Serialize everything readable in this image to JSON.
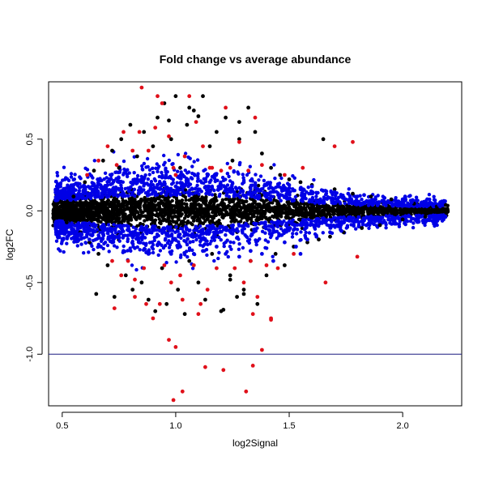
{
  "chart_data": {
    "type": "scatter",
    "title": "Fold change vs average abundance",
    "xlabel": "log2Signal",
    "ylabel": "log2FC",
    "xlim": [
      0.44,
      2.26
    ],
    "ylim": [
      -1.36,
      0.9
    ],
    "xticks": [
      0.5,
      1.0,
      1.5,
      2.0
    ],
    "xtick_labels": [
      "0.5",
      "1.0",
      "1.5",
      "2.0"
    ],
    "yticks": [
      0.5,
      0.0,
      -0.5,
      -1.0
    ],
    "ytick_labels": [
      "0.5",
      "0.0",
      "-0.5",
      "-1.0"
    ],
    "grid": false,
    "reference_lines": [
      {
        "orientation": "horizontal",
        "y": -1.0,
        "color": "#1a1a80"
      }
    ],
    "series": [
      {
        "color": "#000000",
        "points": [
          [
            0.47,
            0.02
          ],
          [
            0.48,
            -0.03
          ],
          [
            0.5,
            0.05
          ],
          [
            0.52,
            -0.08
          ],
          [
            0.55,
            0.1
          ],
          [
            0.58,
            -0.15
          ],
          [
            0.6,
            0.2
          ],
          [
            0.62,
            -0.22
          ],
          [
            0.64,
            0.28
          ],
          [
            0.65,
            -0.58
          ],
          [
            0.66,
            -0.3
          ],
          [
            0.68,
            0.35
          ],
          [
            0.7,
            -0.38
          ],
          [
            0.72,
            0.42
          ],
          [
            0.73,
            -0.6
          ],
          [
            0.75,
            0.3
          ],
          [
            0.76,
            0.5
          ],
          [
            0.78,
            -0.45
          ],
          [
            0.8,
            0.6
          ],
          [
            0.81,
            -0.55
          ],
          [
            0.83,
            0.38
          ],
          [
            0.85,
            -0.5
          ],
          [
            0.86,
            0.55
          ],
          [
            0.88,
            -0.62
          ],
          [
            0.9,
            0.45
          ],
          [
            0.91,
            -0.7
          ],
          [
            0.92,
            0.65
          ],
          [
            0.94,
            -0.4
          ],
          [
            0.95,
            0.75
          ],
          [
            0.96,
            -0.65
          ],
          [
            0.98,
            0.5
          ],
          [
            1.0,
            0.8
          ],
          [
            1.01,
            -0.55
          ],
          [
            1.02,
            0.3
          ],
          [
            1.04,
            -0.72
          ],
          [
            1.05,
            0.6
          ],
          [
            1.06,
            -0.35
          ],
          [
            1.08,
            0.7
          ],
          [
            1.1,
            -0.5
          ],
          [
            1.12,
            0.8
          ],
          [
            1.13,
            -0.62
          ],
          [
            1.15,
            0.45
          ],
          [
            1.16,
            -0.3
          ],
          [
            1.18,
            0.55
          ],
          [
            1.2,
            -0.7
          ],
          [
            1.22,
            0.65
          ],
          [
            1.24,
            -0.45
          ],
          [
            1.25,
            0.35
          ],
          [
            1.27,
            -0.6
          ],
          [
            1.28,
            0.5
          ],
          [
            1.3,
            -0.55
          ],
          [
            1.32,
            0.72
          ],
          [
            1.33,
            -0.35
          ],
          [
            1.35,
            0.55
          ],
          [
            1.36,
            -0.65
          ],
          [
            1.38,
            0.4
          ],
          [
            1.4,
            -0.45
          ],
          [
            1.42,
            0.3
          ],
          [
            1.44,
            -0.3
          ],
          [
            1.46,
            0.25
          ],
          [
            1.48,
            -0.38
          ],
          [
            1.5,
            0.22
          ],
          [
            1.52,
            -0.25
          ],
          [
            1.55,
            0.2
          ],
          [
            1.58,
            -0.22
          ],
          [
            1.6,
            0.18
          ],
          [
            1.63,
            -0.2
          ],
          [
            1.65,
            0.5
          ],
          [
            1.68,
            -0.18
          ],
          [
            1.7,
            0.15
          ],
          [
            1.74,
            -0.15
          ],
          [
            1.78,
            0.12
          ],
          [
            1.82,
            -0.12
          ],
          [
            1.86,
            0.1
          ],
          [
            1.9,
            -0.1
          ],
          [
            1.95,
            0.08
          ],
          [
            2.0,
            -0.06
          ],
          [
            2.05,
            0.05
          ],
          [
            2.1,
            -0.04
          ],
          [
            2.15,
            0.03
          ],
          [
            2.19,
            0.04
          ],
          [
            1.24,
            -0.48
          ],
          [
            1.21,
            -0.69
          ],
          [
            1.1,
            0.66
          ],
          [
            0.97,
            0.63
          ],
          [
            1.06,
            0.72
          ],
          [
            1.28,
            0.62
          ],
          [
            1.3,
            -0.58
          ]
        ]
      },
      {
        "color": "#0000e6",
        "points": [
          [
            0.5,
            0.1
          ],
          [
            0.52,
            -0.12
          ],
          [
            0.55,
            0.14
          ],
          [
            0.58,
            -0.16
          ],
          [
            0.6,
            0.12
          ],
          [
            0.62,
            -0.2
          ],
          [
            0.65,
            0.15
          ],
          [
            0.67,
            -0.25
          ],
          [
            0.7,
            0.18
          ],
          [
            0.72,
            -0.22
          ],
          [
            0.75,
            0.2
          ],
          [
            0.77,
            -0.28
          ],
          [
            0.8,
            0.16
          ],
          [
            0.82,
            -0.26
          ],
          [
            0.85,
            0.2
          ],
          [
            0.88,
            -0.3
          ],
          [
            0.9,
            0.18
          ],
          [
            0.92,
            -0.24
          ],
          [
            0.95,
            0.2
          ],
          [
            0.98,
            -0.3
          ],
          [
            1.0,
            0.17
          ],
          [
            1.02,
            -0.25
          ],
          [
            1.05,
            0.2
          ],
          [
            1.08,
            -0.3
          ],
          [
            1.1,
            0.15
          ],
          [
            1.12,
            -0.28
          ],
          [
            1.15,
            0.2
          ],
          [
            1.18,
            -0.25
          ],
          [
            1.2,
            0.18
          ],
          [
            1.22,
            -0.3
          ],
          [
            1.25,
            0.15
          ],
          [
            1.28,
            -0.32
          ],
          [
            1.3,
            0.2
          ],
          [
            1.33,
            -0.28
          ],
          [
            1.35,
            0.16
          ],
          [
            1.38,
            -0.3
          ],
          [
            1.4,
            0.18
          ],
          [
            1.43,
            -0.35
          ],
          [
            1.45,
            0.17
          ],
          [
            1.48,
            -0.22
          ],
          [
            1.5,
            0.18
          ],
          [
            1.53,
            -0.25
          ],
          [
            1.55,
            0.15
          ],
          [
            1.58,
            -0.2
          ],
          [
            1.6,
            0.17
          ],
          [
            1.62,
            -0.18
          ],
          [
            1.65,
            0.14
          ],
          [
            1.68,
            -0.15
          ],
          [
            1.7,
            0.13
          ],
          [
            1.73,
            -0.14
          ],
          [
            1.76,
            0.12
          ],
          [
            1.8,
            0.1
          ],
          [
            1.84,
            -0.1
          ],
          [
            1.88,
            0.08
          ],
          [
            1.92,
            0.09
          ],
          [
            1.96,
            -0.05
          ],
          [
            2.0,
            0.08
          ],
          [
            2.04,
            0.06
          ],
          [
            2.08,
            0.05
          ],
          [
            2.12,
            0.05
          ],
          [
            2.16,
            0.04
          ],
          [
            1.83,
            0.11
          ],
          [
            1.91,
            0.07
          ],
          [
            1.55,
            -0.3
          ]
        ]
      },
      {
        "color": "#e0101a",
        "points": [
          [
            0.61,
            0.25
          ],
          [
            0.66,
            0.35
          ],
          [
            0.7,
            0.45
          ],
          [
            0.72,
            -0.35
          ],
          [
            0.74,
            0.32
          ],
          [
            0.76,
            -0.45
          ],
          [
            0.77,
            0.55
          ],
          [
            0.79,
            -0.35
          ],
          [
            0.81,
            0.42
          ],
          [
            0.82,
            -0.48
          ],
          [
            0.84,
            0.55
          ],
          [
            0.85,
            0.86
          ],
          [
            0.86,
            -0.4
          ],
          [
            0.87,
            -0.65
          ],
          [
            0.88,
            0.42
          ],
          [
            0.9,
            -0.75
          ],
          [
            0.91,
            0.58
          ],
          [
            0.92,
            0.8
          ],
          [
            0.93,
            -0.65
          ],
          [
            0.94,
            0.75
          ],
          [
            0.95,
            -0.38
          ],
          [
            0.97,
            0.52
          ],
          [
            0.98,
            -0.5
          ],
          [
            1.0,
            0.25
          ],
          [
            1.0,
            -0.95
          ],
          [
            1.02,
            -0.45
          ],
          [
            1.04,
            0.38
          ],
          [
            1.06,
            0.8
          ],
          [
            1.08,
            -0.38
          ],
          [
            1.09,
            0.62
          ],
          [
            1.1,
            -0.72
          ],
          [
            1.12,
            0.45
          ],
          [
            1.14,
            -0.55
          ],
          [
            1.16,
            0.3
          ],
          [
            1.18,
            -0.4
          ],
          [
            1.2,
            0.28
          ],
          [
            1.22,
            0.72
          ],
          [
            1.24,
            0.3
          ],
          [
            1.26,
            -0.4
          ],
          [
            1.28,
            0.48
          ],
          [
            1.3,
            -0.5
          ],
          [
            1.32,
            0.28
          ],
          [
            1.33,
            -0.35
          ],
          [
            1.35,
            0.65
          ],
          [
            1.36,
            -0.6
          ],
          [
            1.38,
            0.32
          ],
          [
            1.4,
            -0.38
          ],
          [
            1.42,
            -0.75
          ],
          [
            1.45,
            -0.4
          ],
          [
            1.48,
            0.25
          ],
          [
            1.52,
            -0.3
          ],
          [
            1.56,
            0.3
          ],
          [
            1.66,
            -0.5
          ],
          [
            1.7,
            0.45
          ],
          [
            1.78,
            0.48
          ],
          [
            1.8,
            -0.32
          ],
          [
            0.97,
            -0.9
          ],
          [
            0.73,
            -0.68
          ],
          [
            0.82,
            -0.6
          ],
          [
            1.11,
            -0.65
          ],
          [
            1.03,
            -0.62
          ],
          [
            1.34,
            -0.72
          ],
          [
            0.99,
            0.3
          ],
          [
            1.15,
            0.3
          ]
        ]
      }
    ],
    "extreme_points": [
      [
        0.99,
        -1.32
      ],
      [
        1.03,
        -1.26
      ],
      [
        1.13,
        -1.09
      ],
      [
        1.21,
        -1.11
      ],
      [
        1.31,
        -1.26
      ],
      [
        1.34,
        -1.08
      ],
      [
        1.38,
        -0.97
      ],
      [
        1.42,
        -0.76
      ]
    ]
  }
}
